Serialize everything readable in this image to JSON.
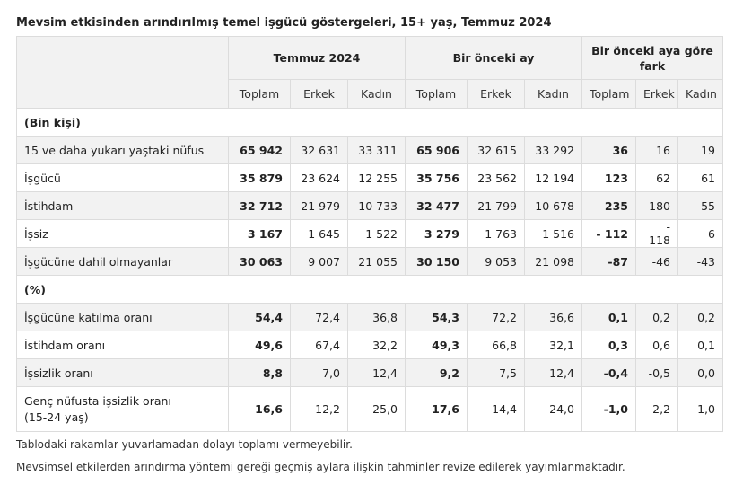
{
  "title": "Mevsim etkisinden arındırılmış temel işgücü göstergeleri, 15+ yaş, Temmuz 2024",
  "groups": [
    "Temmuz 2024",
    "Bir önceki ay",
    "Bir önceki aya göre fark"
  ],
  "subheaders": [
    "Toplam",
    "Erkek",
    "Kadın",
    "Toplam",
    "Erkek",
    "Kadın",
    "Toplam",
    "Erkek",
    "Kadın"
  ],
  "sections": [
    {
      "label": "(Bin kişi)",
      "rows": [
        {
          "label": "15 ve daha yukarı yaştaki nüfus",
          "values": [
            "65 942",
            "32 631",
            "33 311",
            "65 906",
            "32 615",
            "33 292",
            "36",
            "16",
            "19"
          ]
        },
        {
          "label": "İşgücü",
          "values": [
            "35 879",
            "23 624",
            "12 255",
            "35 756",
            "23 562",
            "12 194",
            "123",
            "62",
            "61"
          ]
        },
        {
          "label": "İstihdam",
          "values": [
            "32 712",
            "21 979",
            "10 733",
            "32 477",
            "21 799",
            "10 678",
            "235",
            "180",
            "55"
          ]
        },
        {
          "label": "İşsiz",
          "values": [
            "3 167",
            "1 645",
            "1 522",
            "3 279",
            "1 763",
            "1 516",
            "- 112",
            "- 118",
            "6"
          ]
        },
        {
          "label": "İşgücüne dahil olmayanlar",
          "values": [
            "30 063",
            "9 007",
            "21 055",
            "30 150",
            "9 053",
            "21 098",
            "-87",
            "-46",
            "-43"
          ]
        }
      ]
    },
    {
      "label": "(%)",
      "rows": [
        {
          "label": "İşgücüne katılma oranı",
          "values": [
            "54,4",
            "72,4",
            "36,8",
            "54,3",
            "72,2",
            "36,6",
            "0,1",
            "0,2",
            "0,2"
          ]
        },
        {
          "label": "İstihdam oranı",
          "values": [
            "49,6",
            "67,4",
            "32,2",
            "49,3",
            "66,8",
            "32,1",
            "0,3",
            "0,6",
            "0,1"
          ]
        },
        {
          "label": "İşsizlik oranı",
          "values": [
            "8,8",
            "7,0",
            "12,4",
            "9,2",
            "7,5",
            "12,4",
            "-0,4",
            "-0,5",
            "0,0"
          ]
        },
        {
          "label_line1": "Genç nüfusta işsizlik oranı",
          "label_line2": "(15-24 yaş)",
          "values": [
            "16,6",
            "12,2",
            "25,0",
            "17,6",
            "14,4",
            "24,0",
            "-1,0",
            "-2,2",
            "1,0"
          ]
        }
      ]
    }
  ],
  "notes": [
    "Tablodaki rakamlar yuvarlamadan dolayı toplamı vermeyebilir.",
    "Mevsimsel etkilerden arındırma yöntemi gereği geçmiş aylara ilişkin tahminler revize edilerek yayımlanmaktadır."
  ]
}
